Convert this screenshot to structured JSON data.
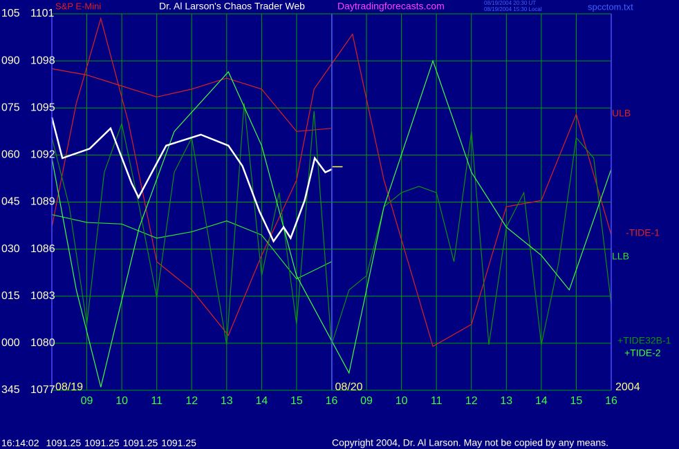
{
  "chart_data": {
    "type": "line",
    "instrument": "S&P E-Mini",
    "title": "Dr. Al Larson's Chaos Trader Web",
    "site": "Daytradingforecasts.com",
    "time_ut": "08/19/2004 20:30 UT",
    "time_local": "08/19/2004 15:30 Local",
    "file": "spcctom.txt",
    "xlim": [
      0,
      16
    ],
    "xticks": [
      {
        "value": 1,
        "label": "09"
      },
      {
        "value": 2,
        "label": "10"
      },
      {
        "value": 3,
        "label": "11"
      },
      {
        "value": 4,
        "label": "12"
      },
      {
        "value": 5,
        "label": "13"
      },
      {
        "value": 6,
        "label": "14"
      },
      {
        "value": 7,
        "label": "15"
      },
      {
        "value": 8,
        "label": "16"
      },
      {
        "value": 9,
        "label": "09"
      },
      {
        "value": 10,
        "label": "10"
      },
      {
        "value": 11,
        "label": "11"
      },
      {
        "value": 12,
        "label": "12"
      },
      {
        "value": 13,
        "label": "13"
      },
      {
        "value": 14,
        "label": "14"
      },
      {
        "value": 15,
        "label": "15"
      },
      {
        "value": 16,
        "label": "16"
      }
    ],
    "date_labels": [
      {
        "value": 0,
        "label": "08/19"
      },
      {
        "value": 8,
        "label": "08/20"
      }
    ],
    "year": "2004",
    "ylim": [
      1077,
      1101
    ],
    "yticks": [
      1077,
      1080,
      1083,
      1086,
      1089,
      1092,
      1095,
      1098,
      1101
    ],
    "angle_labels": [
      "345",
      "000",
      "015",
      "030",
      "045",
      "060",
      "075",
      "090",
      "105"
    ],
    "grid": true,
    "series": [
      {
        "name": "ULB",
        "color": "#e02020",
        "x": [
          0,
          1,
          2,
          3,
          4,
          5,
          6,
          7,
          8
        ],
        "values": [
          1097.5,
          1097.1,
          1096.4,
          1095.7,
          1096.2,
          1096.9,
          1096.2,
          1093.5,
          1093.7
        ]
      },
      {
        "name": "-TIDE-1",
        "color": "#e02020",
        "x": [
          0,
          0.7,
          1.4,
          2.2,
          3,
          4,
          5.05,
          6,
          7,
          7.5,
          8.6,
          9.5,
          10.9,
          12,
          13,
          14,
          15,
          16
        ],
        "values": [
          1087.4,
          1095.3,
          1100.7,
          1094.0,
          1085.2,
          1083.4,
          1080.5,
          1085.6,
          1090.4,
          1096.2,
          1099.7,
          1090.4,
          1079.8,
          1081.2,
          1088.7,
          1089.1,
          1094.6,
          1086.9
        ]
      },
      {
        "name": "LLB",
        "color": "#30e030",
        "x": [
          0,
          1,
          2,
          3,
          4,
          5,
          6,
          7,
          8
        ],
        "values": [
          1088.2,
          1087.7,
          1087.6,
          1086.7,
          1087.1,
          1087.8,
          1086.9,
          1084.1,
          1085.2
        ]
      },
      {
        "name": "+TIDE32B-1",
        "color": "#109010",
        "x": [
          0,
          0.5,
          1,
          1.5,
          2,
          2.5,
          3,
          3.5,
          4,
          4.5,
          5,
          5.5,
          6,
          6.5,
          7,
          7.5,
          8,
          8.5,
          9,
          9.5,
          10,
          10.5,
          11,
          11.5,
          12,
          12.5,
          13,
          13.5,
          14,
          14.5,
          15,
          15.5,
          16
        ],
        "values": [
          1093.1,
          1088.7,
          1081.2,
          1090.9,
          1094.0,
          1088.7,
          1082.9,
          1090.9,
          1093.1,
          1086.5,
          1079.9,
          1095.3,
          1084.3,
          1089.6,
          1081.2,
          1094.8,
          1079.9,
          1083.4,
          1084.3,
          1088.7,
          1089.6,
          1090.0,
          1089.6,
          1085.2,
          1093.5,
          1079.9,
          1087.4,
          1089.6,
          1079.9,
          1085.2,
          1093.1,
          1091.8,
          1082.5
        ]
      },
      {
        "name": "+TIDE-2",
        "color": "#40ff40",
        "x": [
          0,
          0.7,
          1.4,
          2.5,
          3.5,
          5.05,
          6,
          7,
          8.5,
          9.5,
          10.9,
          12,
          13,
          14,
          14.8,
          16
        ],
        "values": [
          1091.8,
          1083.4,
          1077.2,
          1087.4,
          1093.5,
          1097.3,
          1092.6,
          1084.3,
          1078.1,
          1088.7,
          1098.0,
          1090.9,
          1087.4,
          1085.6,
          1083.4,
          1091.1
        ]
      }
    ],
    "price": {
      "color": "#ffffff",
      "x": [
        0,
        0.3,
        1.08,
        1.68,
        2.28,
        2.48,
        3.27,
        4.26,
        5.05,
        5.45,
        5.94,
        6.34,
        6.63,
        6.83,
        7.23,
        7.52,
        7.82,
        8.02
      ],
      "values": [
        1094.4,
        1091.8,
        1092.4,
        1093.7,
        1090.2,
        1089.3,
        1092.6,
        1093.3,
        1092.6,
        1091.3,
        1088.4,
        1086.5,
        1087.4,
        1086.7,
        1089.1,
        1091.8,
        1090.9,
        1091.1
      ]
    },
    "quote": {
      "time": "16:14:02",
      "open": 1091.25,
      "high": 1091.25,
      "low": 1091.25,
      "close": 1091.25
    },
    "copyright": "Copyright 2004, Dr. Al Larson. May not be copied by any means."
  }
}
